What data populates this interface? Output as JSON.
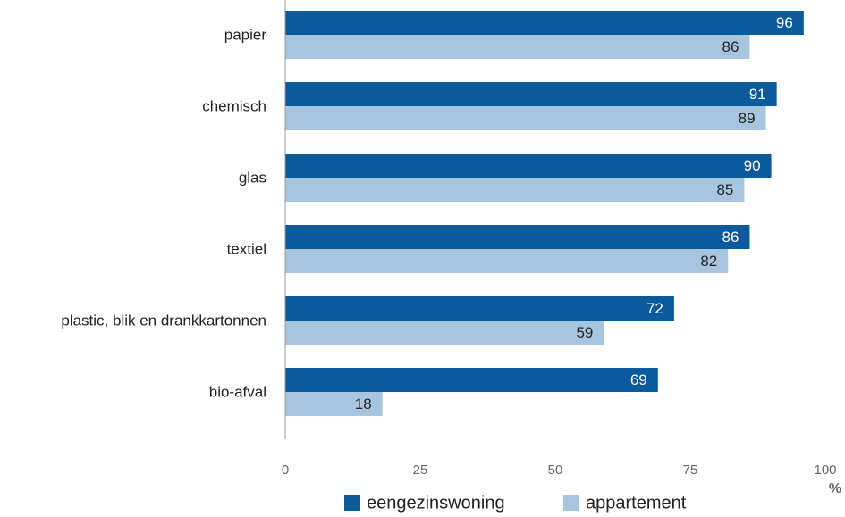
{
  "chart_data": {
    "type": "bar",
    "orientation": "horizontal",
    "categories": [
      "papier",
      "chemisch",
      "glas",
      "textiel",
      "plastic, blik en drankkartonnen",
      "bio-afval"
    ],
    "series": [
      {
        "name": "eengezinswoning",
        "color": "#0a5a9c",
        "values": [
          96,
          91,
          90,
          86,
          72,
          69
        ]
      },
      {
        "name": "appartement",
        "color": "#a7c5de",
        "values": [
          86,
          89,
          85,
          82,
          59,
          18
        ]
      }
    ],
    "xlabel": "%",
    "xlim": [
      0,
      100
    ],
    "xticks": [
      0,
      25,
      50,
      75,
      100
    ],
    "legend": "bottom"
  }
}
